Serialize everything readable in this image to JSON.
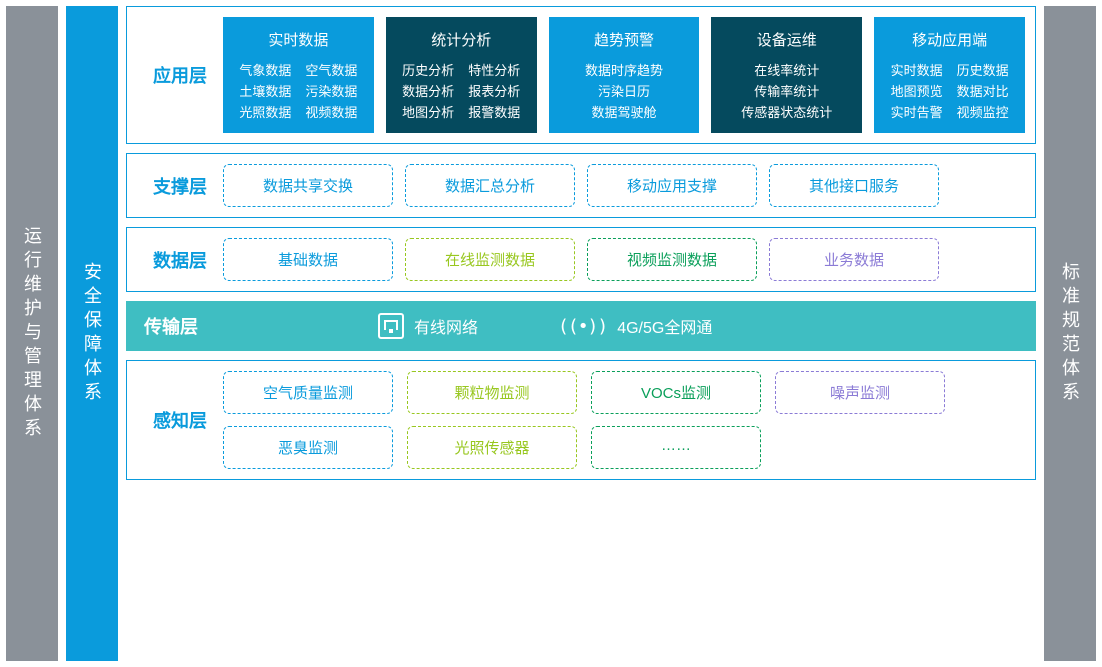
{
  "colors": {
    "gray": "#8a9199",
    "brandBlue": "#0a9bdc",
    "darkTeal": "#054a5e",
    "lightBlue": "#0a9bdc",
    "teal": "#3fbec2",
    "lime": "#98c71f",
    "limeDark": "#6bb82a",
    "green": "#0a9f5a",
    "purple": "#8b7bd6",
    "white": "#ffffff"
  },
  "pillars": {
    "left": "运行维护与管理体系",
    "security": "安全保障体系",
    "right": "标准规范体系"
  },
  "layers": {
    "application": {
      "label": "应用层",
      "cards": [
        {
          "title": "实时数据",
          "bg": "#0a9bdc",
          "cols": 2,
          "items": [
            "气象数据",
            "空气数据",
            "土壤数据",
            "污染数据",
            "光照数据",
            "视频数据"
          ]
        },
        {
          "title": "统计分析",
          "bg": "#054a5e",
          "cols": 2,
          "items": [
            "历史分析",
            "特性分析",
            "数据分析",
            "报表分析",
            "地图分析",
            "报警数据"
          ]
        },
        {
          "title": "趋势预警",
          "bg": "#0a9bdc",
          "cols": 1,
          "items": [
            "数据时序趋势",
            "污染日历",
            "数据驾驶舱"
          ]
        },
        {
          "title": "设备运维",
          "bg": "#054a5e",
          "cols": 1,
          "items": [
            "在线率统计",
            "传输率统计",
            "传感器状态统计"
          ]
        },
        {
          "title": "移动应用端",
          "bg": "#0a9bdc",
          "cols": 2,
          "items": [
            "实时数据",
            "历史数据",
            "地图预览",
            "数据对比",
            "实时告警",
            "视频监控"
          ]
        }
      ]
    },
    "support": {
      "label": "支撑层",
      "pills": [
        {
          "text": "数据共享交换",
          "color": "#0a9bdc"
        },
        {
          "text": "数据汇总分析",
          "color": "#0a9bdc"
        },
        {
          "text": "移动应用支撑",
          "color": "#0a9bdc"
        },
        {
          "text": "其他接口服务",
          "color": "#0a9bdc"
        }
      ]
    },
    "data": {
      "label": "数据层",
      "pills": [
        {
          "text": "基础数据",
          "color": "#0a9bdc"
        },
        {
          "text": "在线监测数据",
          "color": "#98c71f"
        },
        {
          "text": "视频监测数据",
          "color": "#0a9f5a"
        },
        {
          "text": "业务数据",
          "color": "#8b7bd6"
        }
      ]
    },
    "transport": {
      "label": "传输层",
      "wired": "有线网络",
      "wireless": "4G/5G全网通"
    },
    "perception": {
      "label": "感知层",
      "row1": [
        {
          "text": "空气质量监测",
          "color": "#0a9bdc"
        },
        {
          "text": "颗粒物监测",
          "color": "#98c71f"
        },
        {
          "text": "VOCs监测",
          "color": "#0a9f5a"
        },
        {
          "text": "噪声监测",
          "color": "#8b7bd6"
        }
      ],
      "row2": [
        {
          "text": "恶臭监测",
          "color": "#0a9bdc"
        },
        {
          "text": "光照传感器",
          "color": "#98c71f"
        },
        {
          "text": "……",
          "color": "#0a9f5a"
        }
      ]
    }
  }
}
